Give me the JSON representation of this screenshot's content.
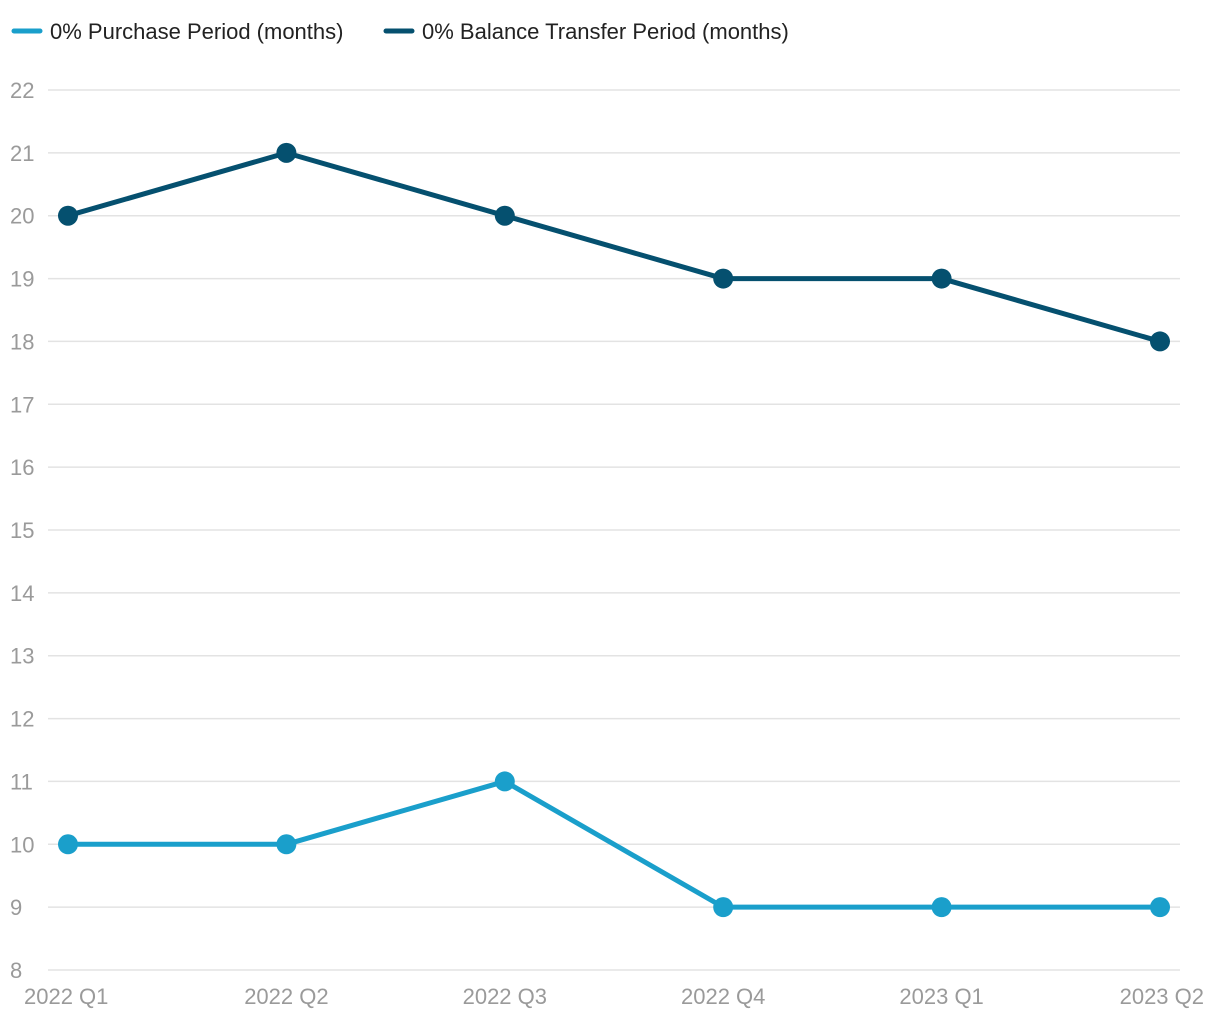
{
  "chart_data": {
    "type": "line",
    "title": "",
    "xlabel": "",
    "ylabel": "",
    "categories": [
      "2022 Q1",
      "2022 Q2",
      "2022 Q3",
      "2022 Q4",
      "2023 Q1",
      "2023 Q2"
    ],
    "ylim": [
      8,
      22
    ],
    "yticks": [
      8,
      9,
      10,
      11,
      12,
      13,
      14,
      15,
      16,
      17,
      18,
      19,
      20,
      21,
      22
    ],
    "grid": true,
    "legend_position": "top-left",
    "series": [
      {
        "name": "0% Purchase Period (months)",
        "color": "#1a9fcb",
        "values": [
          10,
          10,
          11,
          9,
          9,
          9
        ]
      },
      {
        "name": "0% Balance Transfer Period (months)",
        "color": "#05506f",
        "values": [
          20,
          21,
          20,
          19,
          19,
          18
        ]
      }
    ]
  }
}
